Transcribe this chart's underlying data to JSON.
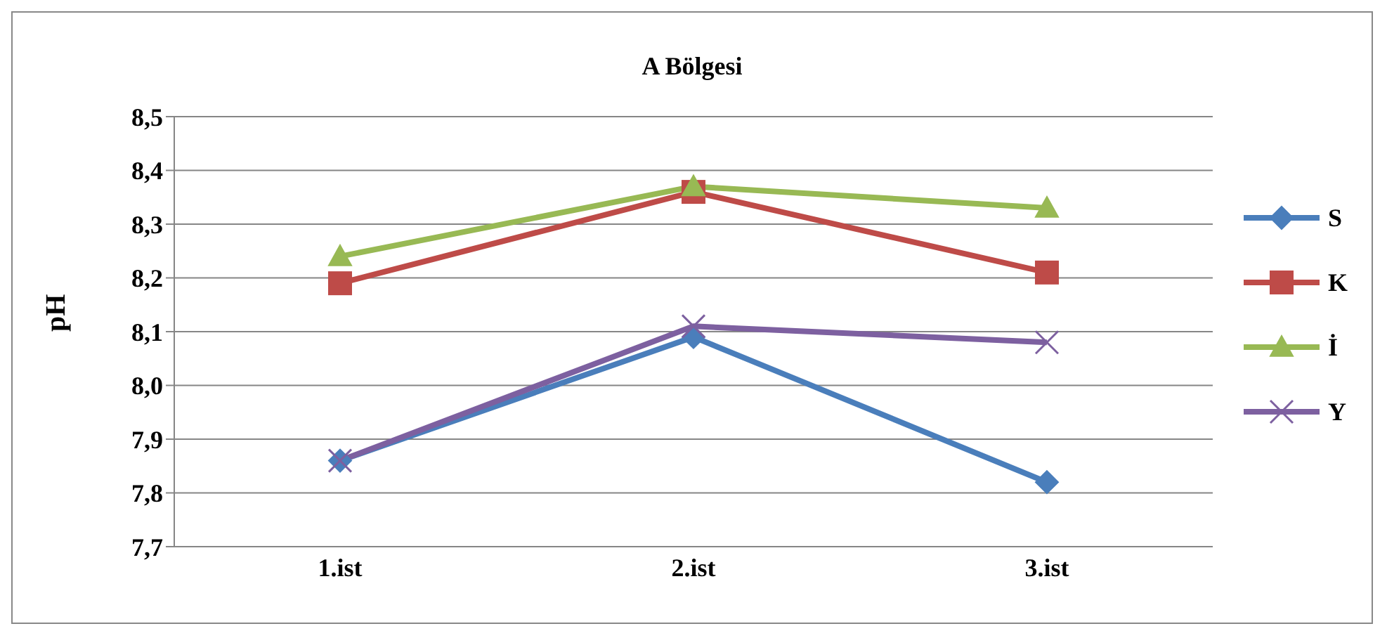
{
  "chart_data": {
    "type": "line",
    "title": "A Bölgesi",
    "ylabel": "pH",
    "categories": [
      "1.ist",
      "2.ist",
      "3.ist"
    ],
    "series": [
      {
        "name": "S",
        "color": "#4a7ebb",
        "marker": "diamond",
        "values": [
          7.86,
          8.09,
          7.82
        ]
      },
      {
        "name": "K",
        "color": "#be4b48",
        "marker": "square",
        "values": [
          8.19,
          8.36,
          8.21
        ]
      },
      {
        "name": "İ",
        "color": "#98b954",
        "marker": "triangle",
        "values": [
          8.24,
          8.37,
          8.33
        ]
      },
      {
        "name": "Y",
        "color": "#7d60a0",
        "marker": "cross",
        "values": [
          7.86,
          8.11,
          8.08
        ]
      }
    ],
    "ylim": [
      7.7,
      8.5
    ],
    "yticks": [
      {
        "value": 7.7,
        "label": "7,7"
      },
      {
        "value": 7.8,
        "label": "7,8"
      },
      {
        "value": 7.9,
        "label": "7,9"
      },
      {
        "value": 8.0,
        "label": "8,0"
      },
      {
        "value": 8.1,
        "label": "8,1"
      },
      {
        "value": 8.2,
        "label": "8,2"
      },
      {
        "value": 8.3,
        "label": "8,3"
      },
      {
        "value": 8.4,
        "label": "8,4"
      },
      {
        "value": 8.5,
        "label": "8,5"
      }
    ],
    "grid": "y",
    "legend": "right"
  }
}
